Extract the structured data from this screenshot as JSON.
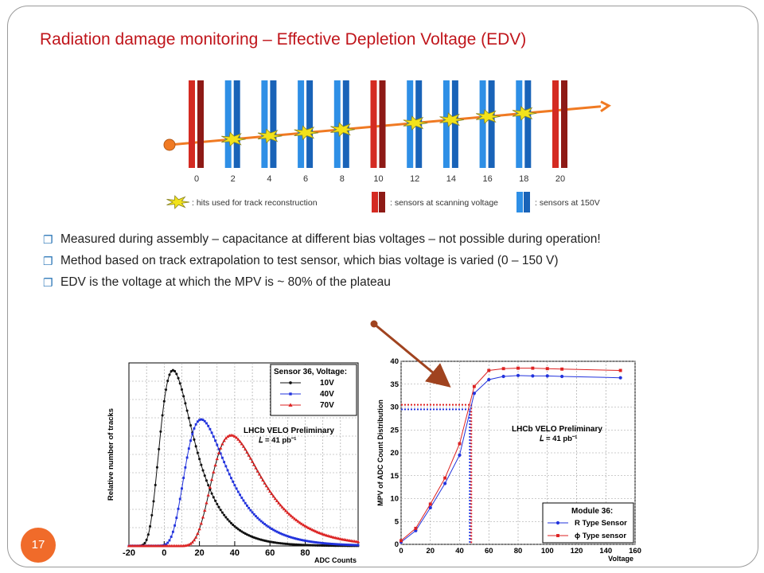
{
  "slide": {
    "title": "Radiation damage monitoring – Effective Depletion Voltage (EDV)",
    "page_number": "17",
    "bullets": [
      "Measured during assembly – capacitance at different bias voltages – not possible during operation!",
      "Method based on track extrapolation to test sensor, which bias voltage is varied (0 – 150 V)",
      "EDV is the voltage at which the MPV is ~ 80% of the plateau"
    ],
    "bullet_icon": "hollow-square-bullet"
  },
  "diagram": {
    "sensor_labels": [
      "0",
      "2",
      "4",
      "6",
      "8",
      "10",
      "12",
      "14",
      "16",
      "18",
      "20"
    ],
    "scanning_sensors": [
      "0",
      "10",
      "20"
    ],
    "hit_sensors": [
      "2",
      "4",
      "6",
      "8",
      "12",
      "14",
      "16",
      "18"
    ],
    "legend": {
      "hits": ": hits used for track reconstruction",
      "scanning": ": sensors at scanning voltage",
      "fixed": ": sensors at 150V"
    },
    "colors": {
      "scanning": "#d42a22",
      "fixed": "#2e8fe6",
      "track": "#f07a23",
      "hit": "#f2e21a"
    }
  },
  "chart_data": [
    {
      "type": "line",
      "ylabel": "Relative number of tracks",
      "xlabel": "ADC Counts",
      "xlim": [
        -20,
        110
      ],
      "x_ticks": [
        "-20",
        "0",
        "20",
        "40",
        "60",
        "80"
      ],
      "grid": true,
      "legend_title": "Sensor 36, Voltage:",
      "legend_position": "top-right",
      "annotation": {
        "line1": "LHCb VELO Preliminary",
        "line2": "𝐿 = 41 pb⁻¹"
      },
      "series": [
        {
          "name": "10V",
          "color": "#111111",
          "marker": "circle",
          "mpv": 5,
          "width": 6.5,
          "peak": 1.0
        },
        {
          "name": "40V",
          "color": "#2233dd",
          "marker": "square",
          "mpv": 21,
          "width": 8.0,
          "peak": 0.72
        },
        {
          "name": "70V",
          "color": "#dd2222",
          "marker": "triangle",
          "mpv": 38,
          "width": 9.5,
          "peak": 0.63
        }
      ]
    },
    {
      "type": "line",
      "ylabel": "MPV of ADC Count Distribution",
      "xlabel": "Voltage",
      "xlim": [
        0,
        160
      ],
      "ylim": [
        0,
        40
      ],
      "x_ticks": [
        0,
        20,
        40,
        60,
        80,
        100,
        120,
        140,
        160
      ],
      "y_ticks": [
        0,
        5,
        10,
        15,
        20,
        25,
        30,
        35,
        40
      ],
      "grid": true,
      "legend_title": "Module 36:",
      "legend_position": "bottom-right",
      "annotation": {
        "line1": "LHCb VELO Preliminary",
        "line2": "𝐿 = 41 pb⁻¹"
      },
      "edv_markers": [
        {
          "series": "R Type Sensor",
          "x": 47,
          "y": 29.5
        },
        {
          "series": "ϕ Type sensor",
          "x": 48,
          "y": 30.5
        }
      ],
      "series": [
        {
          "name": "R Type Sensor",
          "color": "#2233dd",
          "marker": "circle",
          "x": [
            0,
            10,
            20,
            30,
            40,
            50,
            60,
            70,
            80,
            90,
            100,
            110,
            150
          ],
          "y": [
            0.5,
            3,
            8,
            13.3,
            19.5,
            33,
            36,
            36.7,
            36.9,
            36.8,
            36.8,
            36.7,
            36.4
          ]
        },
        {
          "name": "ϕ Type sensor",
          "color": "#dd2222",
          "marker": "square",
          "x": [
            0,
            10,
            20,
            30,
            40,
            50,
            60,
            70,
            80,
            90,
            100,
            110,
            150
          ],
          "y": [
            0.8,
            3.5,
            8.8,
            14.5,
            22,
            34.5,
            38,
            38.4,
            38.5,
            38.5,
            38.4,
            38.3,
            38
          ]
        }
      ]
    }
  ]
}
